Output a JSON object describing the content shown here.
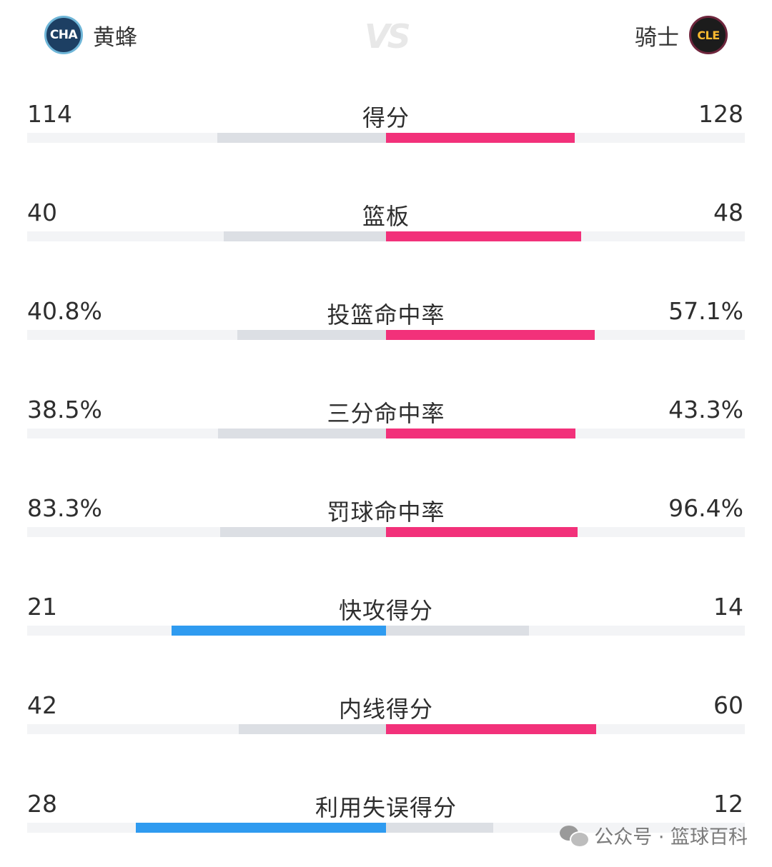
{
  "header": {
    "home": {
      "abbr": "CHA",
      "name": "黄蜂"
    },
    "away": {
      "abbr": "CLE",
      "name": "骑士"
    },
    "vs": "VS"
  },
  "colors": {
    "home_lead": "#2f9bf0",
    "away_lead": "#f2317a",
    "trail": "#dcdfe4",
    "track": "#f3f4f6"
  },
  "stats": [
    {
      "label": "得分",
      "home": "114",
      "away": "128",
      "home_share": 0.4711,
      "away_share": 0.5289
    },
    {
      "label": "篮板",
      "home": "40",
      "away": "48",
      "home_share": 0.4545,
      "away_share": 0.5455
    },
    {
      "label": "投篮命中率",
      "home": "40.8%",
      "away": "57.1%",
      "home_share": 0.4168,
      "away_share": 0.5832
    },
    {
      "label": "三分命中率",
      "home": "38.5%",
      "away": "43.3%",
      "home_share": 0.4707,
      "away_share": 0.5293
    },
    {
      "label": "罚球命中率",
      "home": "83.3%",
      "away": "96.4%",
      "home_share": 0.4635,
      "away_share": 0.5365
    },
    {
      "label": "快攻得分",
      "home": "21",
      "away": "14",
      "home_share": 0.6,
      "away_share": 0.4
    },
    {
      "label": "内线得分",
      "home": "42",
      "away": "60",
      "home_share": 0.4118,
      "away_share": 0.5882
    },
    {
      "label": "利用失误得分",
      "home": "28",
      "away": "12",
      "home_share": 0.7,
      "away_share": 0.3
    }
  ],
  "watermark": "公众号 · 篮球百科"
}
